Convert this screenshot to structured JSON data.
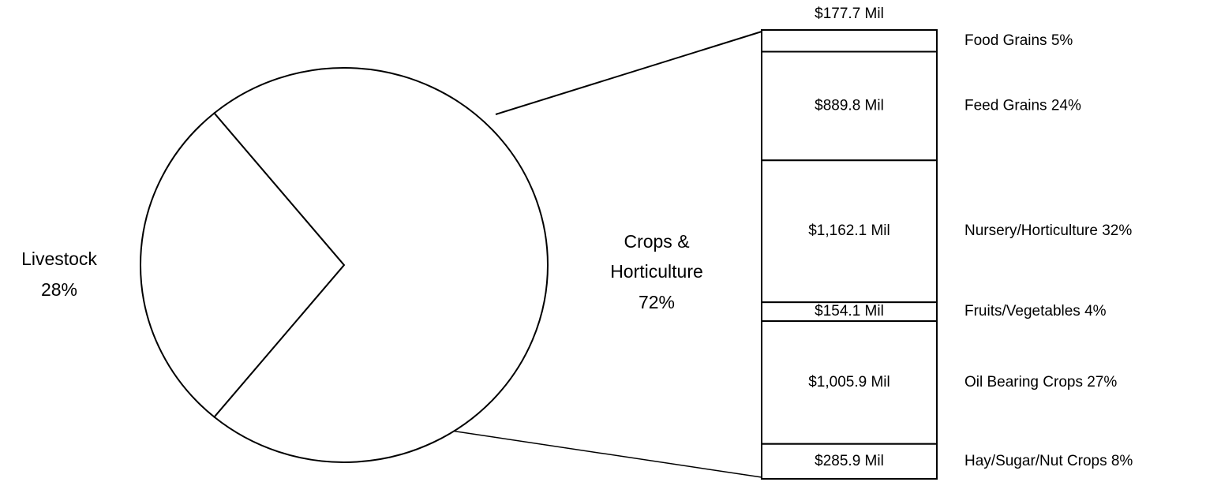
{
  "chart_data": {
    "type": "bar-of-pie",
    "pie": {
      "categories": [
        "Livestock",
        "Crops & Horticulture"
      ],
      "values": [
        28,
        72
      ],
      "value_labels": [
        "28%",
        "72%"
      ]
    },
    "bar": {
      "categories": [
        "Food Grains  5%",
        "Feed Grains 24%",
        "Nursery/Horticulture  32%",
        "Fruits/Vegetables  4%",
        "Oil Bearing Crops  27%",
        "Hay/Sugar/Nut Crops  8%"
      ],
      "values": [
        177.7,
        889.8,
        1162.1,
        154.1,
        1005.9,
        285.9
      ],
      "value_labels": [
        "$177.7 Mil",
        "$889.8 Mil",
        "$1,162.1 Mil",
        "$154.1 Mil",
        "$1,005.9 Mil",
        "$285.9 Mil"
      ]
    }
  }
}
